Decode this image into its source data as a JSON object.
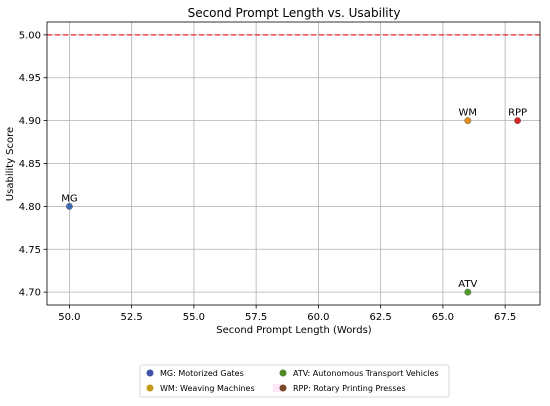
{
  "chart_data": {
    "type": "scatter",
    "title": "Second Prompt Length vs. Usability",
    "xlabel": "Second Prompt Length (Words)",
    "ylabel": "Usability Score",
    "xlim": [
      49.1,
      68.9
    ],
    "ylim": [
      4.685,
      5.015
    ],
    "xticks": [
      "50.0",
      "52.5",
      "55.0",
      "57.5",
      "60.0",
      "62.5",
      "65.0",
      "67.5"
    ],
    "yticks": [
      "4.70",
      "4.75",
      "4.80",
      "4.85",
      "4.90",
      "4.95",
      "5.00"
    ],
    "grid": true,
    "reference_line": {
      "y": 5.0,
      "color": "#e8222a",
      "style": "dashed"
    },
    "points": [
      {
        "label": "MG",
        "x": 50,
        "y": 4.8,
        "color": "#3d6bb3"
      },
      {
        "label": "WM",
        "x": 66,
        "y": 4.9,
        "color": "#e08a1c"
      },
      {
        "label": "RPP",
        "x": 68,
        "y": 4.9,
        "color": "#d62728"
      },
      {
        "label": "ATV",
        "x": 66,
        "y": 4.7,
        "color": "#4f9a2a"
      }
    ],
    "legend": {
      "placement": "bottom-center",
      "entries": [
        {
          "text": "MG: Motorized Gates",
          "color": "#3f51a8"
        },
        {
          "text": "WM: Weaving Machines",
          "color": "#c49a1a"
        },
        {
          "text": "ATV: Autonomous Transport Vehicles",
          "color": "#4e8a2a"
        },
        {
          "text": "RPP: Rotary Printing Presses",
          "color": "#7a4a2a"
        }
      ]
    }
  }
}
